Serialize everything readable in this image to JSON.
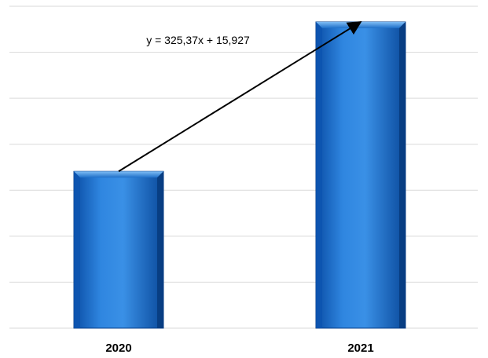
{
  "chart_data": {
    "type": "bar",
    "categories": [
      "2020",
      "2021"
    ],
    "values": [
      341,
      666
    ],
    "title": "",
    "xlabel": "",
    "ylabel": "",
    "ylim": [
      0,
      700
    ],
    "grid": true,
    "legend": "none",
    "bar_color": "#1565c0",
    "bar_highlight": "#4a9be8",
    "grid_color": "#d9d9d9",
    "trendline": {
      "label": "y = 325,37x + 15,927",
      "slope": 325.37,
      "intercept": 15.927,
      "color": "#000000"
    }
  }
}
